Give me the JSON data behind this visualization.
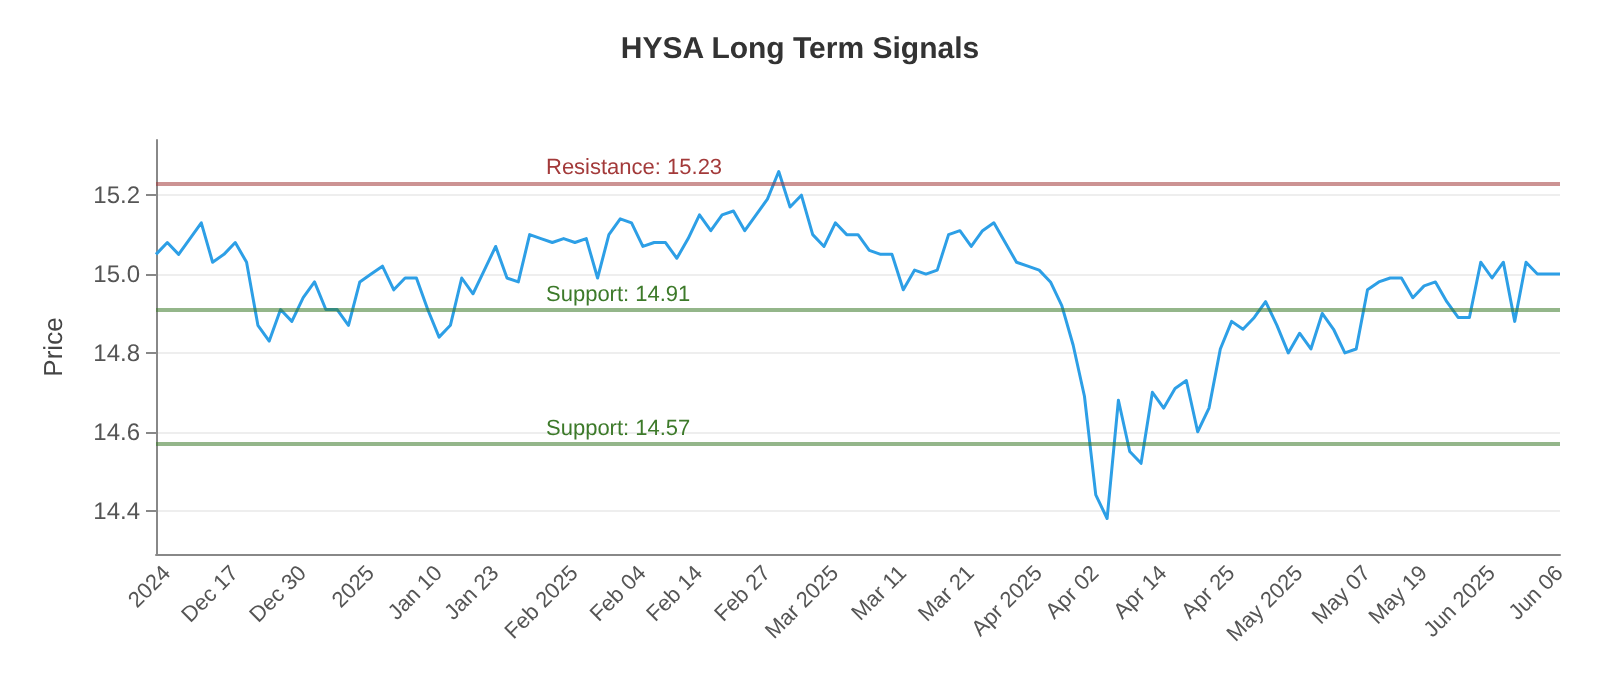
{
  "chart_data": {
    "type": "line",
    "title": "HYSA Long Term Signals",
    "ylabel": "Price",
    "categories": [
      null,
      "2024",
      null,
      null,
      null,
      null,
      null,
      "Dec 17",
      null,
      null,
      null,
      null,
      null,
      "Dec 30",
      null,
      null,
      null,
      null,
      null,
      "2025",
      null,
      null,
      null,
      null,
      null,
      "Jan 10",
      null,
      null,
      null,
      null,
      "Jan 23",
      null,
      null,
      null,
      null,
      null,
      null,
      "Feb 2025",
      null,
      null,
      null,
      null,
      null,
      "Feb 04",
      null,
      null,
      null,
      null,
      "Feb 14",
      null,
      null,
      null,
      null,
      null,
      "Feb 27",
      null,
      null,
      null,
      null,
      null,
      "Mar 2025",
      null,
      null,
      null,
      null,
      null,
      "Mar 11",
      null,
      null,
      null,
      null,
      null,
      "Mar 21",
      null,
      null,
      null,
      null,
      null,
      "Apr 2025",
      null,
      null,
      null,
      null,
      "Apr 02",
      null,
      null,
      null,
      null,
      null,
      "Apr 14",
      null,
      null,
      null,
      null,
      null,
      "Apr 25",
      null,
      null,
      null,
      null,
      null,
      "May 2025",
      null,
      null,
      null,
      null,
      null,
      "May 07",
      null,
      null,
      null,
      null,
      "May 19",
      null,
      null,
      null,
      null,
      null,
      "Jun 2025",
      null,
      null,
      null,
      null,
      null,
      "Jun 06"
    ],
    "series": [
      {
        "color": "#2d9fe6",
        "values": [
          15.05,
          15.08,
          15.05,
          15.09,
          15.13,
          15.03,
          15.05,
          15.08,
          15.03,
          14.87,
          14.83,
          14.91,
          14.88,
          14.94,
          14.98,
          14.91,
          14.91,
          14.87,
          14.98,
          15.0,
          15.02,
          14.96,
          14.99,
          14.99,
          14.91,
          14.84,
          14.87,
          14.99,
          14.95,
          15.01,
          15.07,
          14.99,
          14.98,
          15.1,
          15.09,
          15.08,
          15.09,
          15.08,
          15.09,
          14.99,
          15.1,
          15.14,
          15.13,
          15.07,
          15.08,
          15.08,
          15.04,
          15.09,
          15.15,
          15.11,
          15.15,
          15.16,
          15.11,
          15.15,
          15.19,
          15.26,
          15.17,
          15.2,
          15.1,
          15.07,
          15.13,
          15.1,
          15.1,
          15.06,
          15.05,
          15.05,
          14.96,
          15.01,
          15.0,
          15.01,
          15.1,
          15.11,
          15.07,
          15.11,
          15.13,
          15.08,
          15.03,
          15.02,
          15.01,
          14.98,
          14.92,
          14.82,
          14.69,
          14.44,
          14.38,
          14.68,
          14.55,
          14.52,
          14.7,
          14.66,
          14.71,
          14.73,
          14.6,
          14.66,
          14.81,
          14.88,
          14.86,
          14.89,
          14.93,
          14.87,
          14.8,
          14.85,
          14.81,
          14.9,
          14.86,
          14.8,
          14.81,
          14.96,
          14.98,
          14.99,
          14.99,
          14.94,
          14.97,
          14.98,
          14.93,
          14.89,
          14.89,
          15.03,
          14.99,
          15.03,
          14.88,
          15.03,
          15.0,
          15.0,
          15.0
        ]
      }
    ],
    "ylim": [
      14.29,
      15.34
    ],
    "yticks": [
      14.4,
      14.6,
      14.8,
      {
        "value": 15,
        "label": "15.0"
      },
      15.2
    ],
    "grid": "y",
    "marker": "none",
    "line_style": "solid",
    "ref_lines": [
      {
        "axis": "y",
        "value": 15.23,
        "label": "Resistance: 15.23",
        "color": "#a33a3a"
      },
      {
        "axis": "y",
        "value": 14.91,
        "label": "Support: 14.91",
        "color": "#3d7a2a"
      },
      {
        "axis": "y",
        "value": 14.57,
        "label": "Support: 14.57",
        "color": "#3d7a2a"
      }
    ]
  }
}
